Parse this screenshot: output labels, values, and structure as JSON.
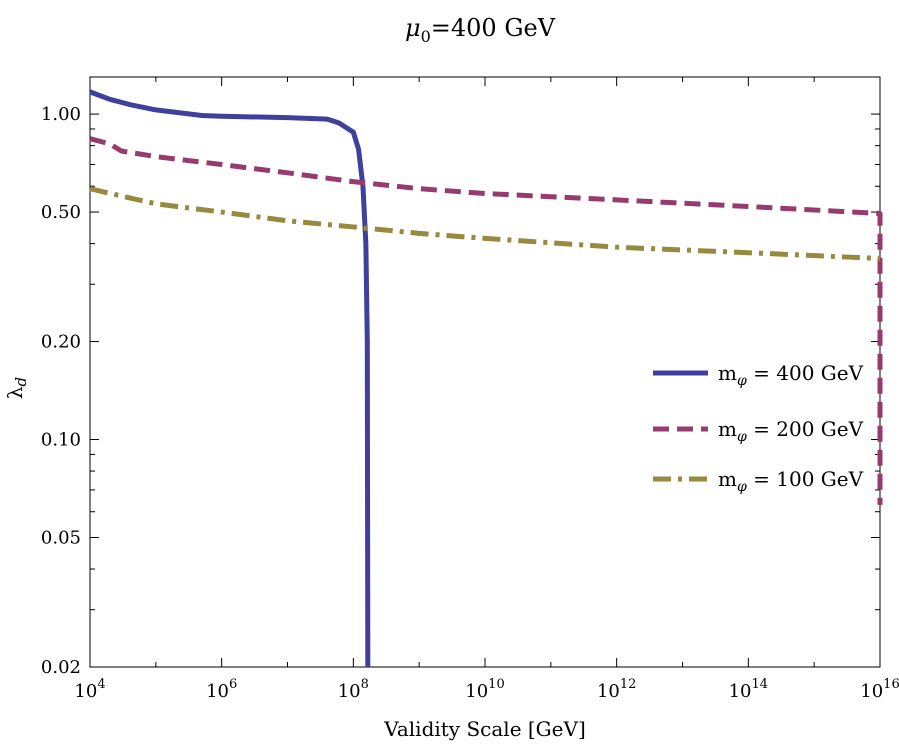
{
  "chart_data": {
    "type": "line",
    "title": {
      "main": "μ",
      "sub": "0",
      "rest": "=400 GeV"
    },
    "xlabel": "Validity Scale [GeV]",
    "ylabel": {
      "main": "λ",
      "sub": "d"
    },
    "xscale": "log",
    "yscale": "log",
    "xlim": [
      10000,
      10000000000000000
    ],
    "ylim": [
      0.02,
      1.3
    ],
    "grid": false,
    "legend_position": "right",
    "x_ticks": [
      {
        "value": 10000,
        "base": "10",
        "exp": "4"
      },
      {
        "value": 1000000,
        "base": "10",
        "exp": "6"
      },
      {
        "value": 100000000,
        "base": "10",
        "exp": "8"
      },
      {
        "value": 10000000000,
        "base": "10",
        "exp": "10"
      },
      {
        "value": 1000000000000,
        "base": "10",
        "exp": "12"
      },
      {
        "value": 100000000000000,
        "base": "10",
        "exp": "14"
      },
      {
        "value": 10000000000000000,
        "base": "10",
        "exp": "16"
      }
    ],
    "y_ticks": [
      {
        "value": 0.02,
        "label": "0.02"
      },
      {
        "value": 0.05,
        "label": "0.05"
      },
      {
        "value": 0.1,
        "label": "0.10"
      },
      {
        "value": 0.2,
        "label": "0.20"
      },
      {
        "value": 0.5,
        "label": "0.50"
      },
      {
        "value": 1.0,
        "label": "1.00"
      }
    ],
    "series": [
      {
        "name": {
          "main": "m",
          "sub": "φ",
          "rest": " = 400 GeV"
        },
        "color": "#3f3f9c",
        "style": "solid",
        "points": [
          [
            10000,
            1.17
          ],
          [
            20000,
            1.11
          ],
          [
            40000,
            1.07
          ],
          [
            100000,
            1.03
          ],
          [
            500000,
            0.99
          ],
          [
            1000000,
            0.985
          ],
          [
            10000000,
            0.975
          ],
          [
            40000000,
            0.965
          ],
          [
            60000000,
            0.94
          ],
          [
            100000000,
            0.88
          ],
          [
            120000000,
            0.78
          ],
          [
            140000000,
            0.6
          ],
          [
            155000000,
            0.4
          ],
          [
            163000000,
            0.2
          ],
          [
            166000000,
            0.02
          ]
        ]
      },
      {
        "name": {
          "main": "m",
          "sub": "φ",
          "rest": " = 200 GeV"
        },
        "color": "#973a6d",
        "style": "dashed",
        "points": [
          [
            10000,
            0.84
          ],
          [
            20000,
            0.81
          ],
          [
            30000,
            0.77
          ],
          [
            100000,
            0.74
          ],
          [
            1000000,
            0.7
          ],
          [
            10000000,
            0.66
          ],
          [
            100000000,
            0.62
          ],
          [
            1000000000,
            0.59
          ],
          [
            10000000000,
            0.57
          ],
          [
            1000000000000,
            0.545
          ],
          [
            100000000000000,
            0.52
          ],
          [
            10000000000000000,
            0.495
          ],
          [
            10000000000000000,
            0.063
          ]
        ]
      },
      {
        "name": {
          "main": "m",
          "sub": "φ",
          "rest": " = 100 GeV"
        },
        "color": "#958a3d",
        "style": "dashdot",
        "points": [
          [
            10000,
            0.59
          ],
          [
            30000,
            0.56
          ],
          [
            100000,
            0.53
          ],
          [
            1000000,
            0.5
          ],
          [
            10000000,
            0.47
          ],
          [
            100000000,
            0.45
          ],
          [
            1000000000,
            0.43
          ],
          [
            10000000000,
            0.415
          ],
          [
            1000000000000,
            0.39
          ],
          [
            100000000000000,
            0.375
          ],
          [
            10000000000000000,
            0.36
          ]
        ]
      }
    ]
  }
}
